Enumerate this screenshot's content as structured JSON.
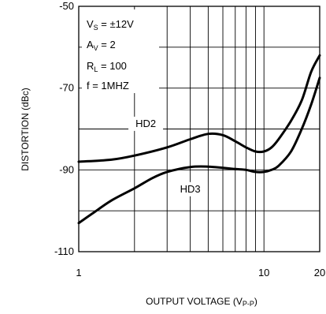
{
  "chart_data": {
    "type": "line",
    "xlabel": "OUTPUT VOLTAGE (V",
    "xlabel_sub": "P-P",
    "xlabel_close": ")",
    "ylabel": "DISTORTION (dBc)",
    "x_scale": "log",
    "xlim": [
      1,
      20
    ],
    "ylim": [
      -110,
      -50
    ],
    "grid": true,
    "x_ticks": [
      {
        "value": 1,
        "label": "1"
      },
      {
        "value": 10,
        "label": "10"
      },
      {
        "value": 20,
        "label": "20"
      }
    ],
    "y_ticks": [
      {
        "value": -50,
        "label": "-50"
      },
      {
        "value": -70,
        "label": "-70"
      },
      {
        "value": -90,
        "label": "-90"
      },
      {
        "value": -110,
        "label": "-110"
      }
    ],
    "conditions": [
      {
        "main": "V",
        "sub": "S",
        "rest": " = ±12V"
      },
      {
        "main": "A",
        "sub": "V",
        "rest": " = 2"
      },
      {
        "main": "R",
        "sub": "L",
        "rest": " = 100"
      },
      {
        "main": "f = 1MHZ",
        "sub": "",
        "rest": ""
      }
    ],
    "series": [
      {
        "name": "HD2",
        "x": [
          1,
          1.5,
          2,
          3,
          4,
          5,
          6,
          7,
          8,
          9,
          10,
          11,
          12,
          14,
          16,
          18,
          20
        ],
        "y": [
          -88,
          -87.5,
          -86.5,
          -84.5,
          -82.5,
          -81.2,
          -81.5,
          -83,
          -84.5,
          -85.5,
          -85.5,
          -84.5,
          -82.5,
          -78,
          -73,
          -66,
          -62
        ]
      },
      {
        "name": "HD3",
        "x": [
          1,
          1.2,
          1.5,
          2,
          2.5,
          3,
          4,
          5,
          6,
          7,
          8,
          9,
          10,
          11,
          12,
          14,
          16,
          18,
          20
        ],
        "y": [
          -103,
          -100.5,
          -97.5,
          -94.5,
          -92,
          -90.5,
          -89.3,
          -89.2,
          -89.5,
          -89.8,
          -90,
          -90.5,
          -90.5,
          -90,
          -89,
          -85.5,
          -80,
          -74,
          -67.5
        ]
      }
    ]
  }
}
